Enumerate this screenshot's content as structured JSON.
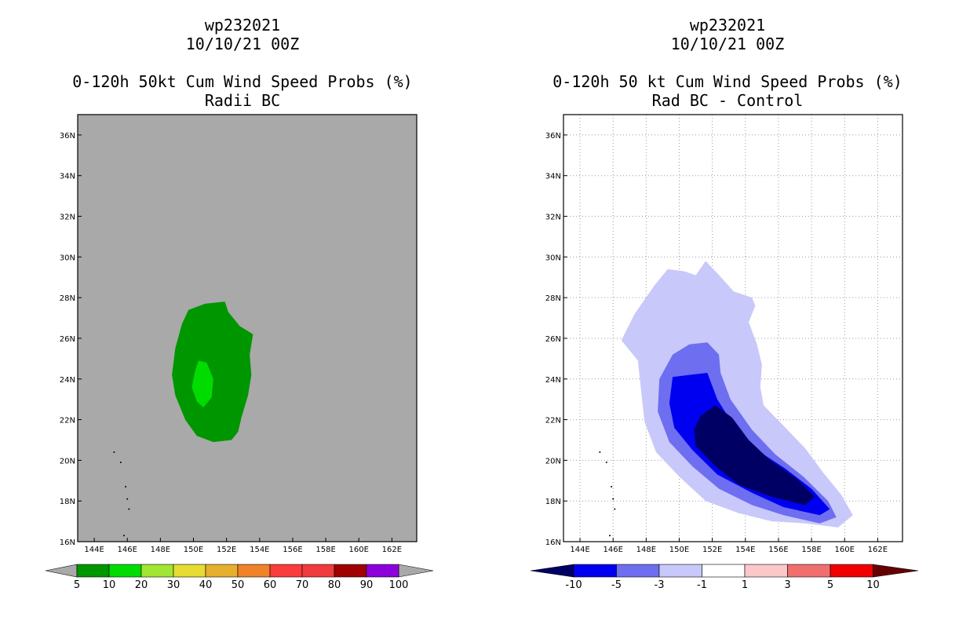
{
  "left_panel": {
    "title": {
      "line1": "wp232021",
      "line2": "10/10/21 00Z",
      "line3": "0-120h 50kt Cum Wind Speed Probs (%)",
      "line4": "Radii BC"
    }
  },
  "right_panel": {
    "title": {
      "line1": "wp232021",
      "line2": "10/10/21 00Z",
      "line3": "0-120h 50 kt Cum Wind Speed Probs (%)",
      "line4": "Rad BC - Control"
    }
  },
  "colors": {
    "gray_background": "#a9a9a9",
    "prob_10": "#009600",
    "prob_20": "#00dc00",
    "diff_lt_m10": "#000064",
    "diff_m10_m5": "#0000f0",
    "diff_m5_m3": "#6e6ef0",
    "diff_m3_m1": "#c8c8fa"
  },
  "chart_data": [
    {
      "type": "contour",
      "panel": "left",
      "title": "0-120h 50kt Cum Wind Speed Probs (%) Radii BC",
      "x_ticks": [
        "144E",
        "146E",
        "148E",
        "150E",
        "152E",
        "154E",
        "156E",
        "158E",
        "160E",
        "162E"
      ],
      "y_ticks": [
        "16N",
        "18N",
        "20N",
        "22N",
        "24N",
        "26N",
        "28N",
        "30N",
        "32N",
        "34N",
        "36N"
      ],
      "xlim": [
        143,
        163.5
      ],
      "ylim": [
        16,
        37
      ],
      "grid": false,
      "background_color": "#a9a9a9",
      "contours": [
        {
          "level": "10-20",
          "color": "#009600",
          "lonlat": [
            [
              150.7,
              27.7
            ],
            [
              151.9,
              27.8
            ],
            [
              152.1,
              27.3
            ],
            [
              152.8,
              26.6
            ],
            [
              153.6,
              26.2
            ],
            [
              153.4,
              25.2
            ],
            [
              153.5,
              24.2
            ],
            [
              153.3,
              23.2
            ],
            [
              152.9,
              22.1
            ],
            [
              152.7,
              21.4
            ],
            [
              152.3,
              21.0
            ],
            [
              151.2,
              20.9
            ],
            [
              150.2,
              21.2
            ],
            [
              149.5,
              22.0
            ],
            [
              148.9,
              23.2
            ],
            [
              148.7,
              24.2
            ],
            [
              148.9,
              25.5
            ],
            [
              149.3,
              26.7
            ],
            [
              149.7,
              27.4
            ]
          ]
        },
        {
          "level": "20-30",
          "color": "#00dc00",
          "lonlat": [
            [
              150.3,
              24.9
            ],
            [
              150.8,
              24.8
            ],
            [
              151.2,
              24.0
            ],
            [
              151.1,
              23.1
            ],
            [
              150.6,
              22.6
            ],
            [
              150.2,
              22.9
            ],
            [
              149.9,
              23.6
            ],
            [
              150.1,
              24.4
            ]
          ]
        }
      ],
      "colorbar": {
        "labels": [
          "5",
          "10",
          "20",
          "30",
          "40",
          "50",
          "60",
          "70",
          "80",
          "90",
          "100"
        ],
        "colors": [
          "#009600",
          "#00dc00",
          "#a0e632",
          "#e6dc32",
          "#e6af2d",
          "#f08228",
          "#fa3c3c",
          "#f03c3c",
          "#a00000",
          "#8c00dc"
        ],
        "end_arrows_color": "#a9a9a9"
      }
    },
    {
      "type": "contour",
      "panel": "right",
      "title": "0-120h 50 kt Cum Wind Speed Probs (%) Rad BC - Control",
      "x_ticks": [
        "144E",
        "146E",
        "148E",
        "150E",
        "152E",
        "154E",
        "156E",
        "158E",
        "160E",
        "162E"
      ],
      "y_ticks": [
        "16N",
        "18N",
        "20N",
        "22N",
        "24N",
        "26N",
        "28N",
        "30N",
        "32N",
        "34N",
        "36N"
      ],
      "xlim": [
        143,
        163.5
      ],
      "ylim": [
        16,
        37
      ],
      "grid": true,
      "background_color": "#ffffff",
      "contours": [
        {
          "level": "-3 to -1",
          "color": "#c8c8fa",
          "lonlat": [
            [
              149.3,
              29.4
            ],
            [
              150.3,
              29.3
            ],
            [
              151.0,
              29.1
            ],
            [
              151.6,
              29.8
            ],
            [
              152.3,
              29.2
            ],
            [
              153.3,
              28.3
            ],
            [
              154.4,
              28.0
            ],
            [
              154.6,
              27.6
            ],
            [
              154.2,
              26.8
            ],
            [
              154.7,
              25.7
            ],
            [
              155.0,
              24.7
            ],
            [
              154.9,
              23.6
            ],
            [
              155.1,
              22.7
            ],
            [
              156.3,
              21.7
            ],
            [
              157.6,
              20.6
            ],
            [
              158.7,
              19.4
            ],
            [
              159.8,
              18.3
            ],
            [
              160.5,
              17.3
            ],
            [
              159.6,
              16.7
            ],
            [
              157.6,
              16.9
            ],
            [
              155.6,
              17.0
            ],
            [
              153.6,
              17.4
            ],
            [
              151.6,
              18.0
            ],
            [
              150.0,
              19.2
            ],
            [
              148.6,
              20.4
            ],
            [
              147.9,
              21.9
            ],
            [
              147.7,
              23.4
            ],
            [
              147.5,
              24.9
            ],
            [
              146.5,
              25.9
            ],
            [
              147.3,
              27.2
            ],
            [
              148.5,
              28.6
            ]
          ]
        },
        {
          "level": "-5 to -3",
          "color": "#6e6ef0",
          "lonlat": [
            [
              149.6,
              25.2
            ],
            [
              150.6,
              25.7
            ],
            [
              151.7,
              25.8
            ],
            [
              152.4,
              25.2
            ],
            [
              152.5,
              24.3
            ],
            [
              153.1,
              23.0
            ],
            [
              154.4,
              21.5
            ],
            [
              155.8,
              20.3
            ],
            [
              157.5,
              19.2
            ],
            [
              159.0,
              18.0
            ],
            [
              159.5,
              17.2
            ],
            [
              158.5,
              16.9
            ],
            [
              156.3,
              17.3
            ],
            [
              154.4,
              17.8
            ],
            [
              152.4,
              18.6
            ],
            [
              150.8,
              19.7
            ],
            [
              149.4,
              20.9
            ],
            [
              148.7,
              22.4
            ],
            [
              148.8,
              24.0
            ]
          ]
        },
        {
          "level": "-10 to -5",
          "color": "#0000f0",
          "lonlat": [
            [
              149.6,
              24.1
            ],
            [
              150.6,
              24.2
            ],
            [
              151.7,
              24.3
            ],
            [
              152.3,
              23.0
            ],
            [
              153.3,
              21.7
            ],
            [
              154.7,
              20.5
            ],
            [
              156.4,
              19.6
            ],
            [
              158.0,
              18.6
            ],
            [
              159.1,
              17.6
            ],
            [
              158.5,
              17.3
            ],
            [
              156.3,
              17.7
            ],
            [
              154.4,
              18.4
            ],
            [
              152.3,
              19.3
            ],
            [
              150.8,
              20.5
            ],
            [
              149.7,
              21.6
            ],
            [
              149.4,
              22.8
            ]
          ]
        },
        {
          "level": "< -10",
          "color": "#000064",
          "lonlat": [
            [
              151.3,
              22.2
            ],
            [
              152.2,
              22.7
            ],
            [
              153.2,
              22.1
            ],
            [
              154.2,
              21.0
            ],
            [
              155.5,
              20.0
            ],
            [
              157.1,
              19.1
            ],
            [
              158.2,
              18.2
            ],
            [
              157.6,
              17.8
            ],
            [
              155.6,
              18.2
            ],
            [
              153.6,
              18.8
            ],
            [
              152.2,
              19.7
            ],
            [
              151.0,
              20.7
            ],
            [
              150.9,
              21.5
            ]
          ]
        }
      ],
      "colorbar": {
        "labels": [
          "-10",
          "-5",
          "-3",
          "-1",
          "1",
          "3",
          "5",
          "10"
        ],
        "colors": [
          "#000064",
          "#0000f0",
          "#6e6ef0",
          "#c8c8fa",
          "#ffffff",
          "#fac8c8",
          "#f06e6e",
          "#f00000",
          "#640000"
        ],
        "end_arrows": "colored"
      }
    }
  ]
}
